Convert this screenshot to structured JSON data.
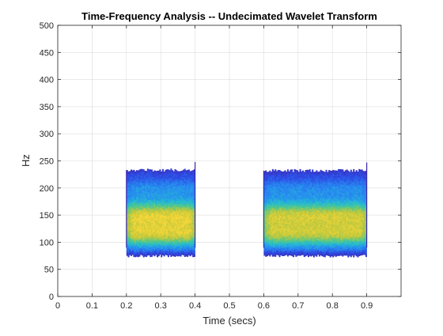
{
  "chart_data": {
    "type": "heatmap",
    "title": "Time-Frequency Analysis -- Undecimated Wavelet Transform",
    "xlabel": "Time (secs)",
    "ylabel": "Hz",
    "xlim": [
      0,
      1.0
    ],
    "ylim": [
      0,
      500
    ],
    "xticks": [
      0,
      0.1,
      0.2,
      0.3,
      0.4,
      0.5,
      0.6,
      0.7,
      0.8,
      0.9
    ],
    "xtick_labels": [
      "0",
      "0.1",
      "0.2",
      "0.3",
      "0.4",
      "0.5",
      "0.6",
      "0.7",
      "0.8",
      "0.9"
    ],
    "yticks": [
      0,
      50,
      100,
      150,
      200,
      250,
      300,
      350,
      400,
      450,
      500
    ],
    "ytick_labels": [
      "0",
      "50",
      "100",
      "150",
      "200",
      "250",
      "300",
      "350",
      "400",
      "450",
      "500"
    ],
    "grid": true,
    "colormap": "parula",
    "colors": {
      "low": "#3e26a8",
      "midlow": "#2e87f5",
      "mid": "#26c2b5",
      "midhigh": "#a9c930",
      "high": "#fbd43a",
      "axis": "#262626",
      "grid": "#dcdcdc"
    },
    "regions": [
      {
        "t_start": 0.2,
        "t_end": 0.4,
        "f_low": 75,
        "f_high": 233,
        "peak_hz": 128,
        "peak_level": 1.0
      },
      {
        "t_start": 0.6,
        "t_end": 0.9,
        "f_low": 75,
        "f_high": 232,
        "peak_hz": 128,
        "peak_level": 0.95
      }
    ]
  }
}
